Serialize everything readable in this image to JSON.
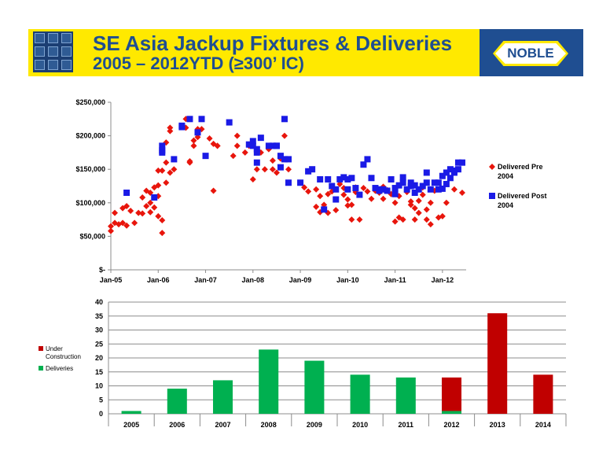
{
  "header": {
    "title_line1": "SE Asia Jackup Fixtures & Deliveries",
    "title_line2": "2005 – 2012YTD (≥300’ IC)",
    "brand": "NOBLE",
    "colors": {
      "banner": "#ffe900",
      "title": "#1f4e91",
      "brand_box": "#1f4e91"
    }
  },
  "chart_data": [
    {
      "type": "scatter",
      "ylim": [
        0,
        250000
      ],
      "y_ticks": [
        0,
        50000,
        100000,
        150000,
        200000,
        250000
      ],
      "y_tick_labels": [
        "$-",
        "$50,000",
        "$100,000",
        "$150,000",
        "$200,000",
        "$250,000"
      ],
      "x_ticks": [
        "2005-01",
        "2006-01",
        "2007-01",
        "2008-01",
        "2009-01",
        "2010-01",
        "2011-01",
        "2012-01"
      ],
      "x_tick_labels": [
        "Jan-05",
        "Jan-06",
        "Jan-07",
        "Jan-08",
        "Jan-09",
        "Jan-10",
        "Jan-11",
        "Jan-12"
      ],
      "xlim": [
        "2005-01",
        "2012-07"
      ],
      "legend_position": "right",
      "series": [
        {
          "name": "Delivered Pre 2004",
          "color": "#e8150c",
          "marker": "diamond",
          "points": [
            [
              "2005-01",
              58000
            ],
            [
              "2005-01",
              65000
            ],
            [
              "2005-02",
              70000
            ],
            [
              "2005-02",
              85000
            ],
            [
              "2005-03",
              68000
            ],
            [
              "2005-04",
              92000
            ],
            [
              "2005-04",
              70000
            ],
            [
              "2005-05",
              66000
            ],
            [
              "2005-05",
              95000
            ],
            [
              "2005-06",
              88000
            ],
            [
              "2005-07",
              70000
            ],
            [
              "2005-08",
              85000
            ],
            [
              "2005-09",
              84000
            ],
            [
              "2005-09",
              108000
            ],
            [
              "2005-10",
              95000
            ],
            [
              "2005-10",
              118000
            ],
            [
              "2005-11",
              115000
            ],
            [
              "2005-11",
              86000
            ],
            [
              "2005-11",
              100000
            ],
            [
              "2005-12",
              93000
            ],
            [
              "2005-12",
              123000
            ],
            [
              "2006-01",
              80000
            ],
            [
              "2006-01",
              110000
            ],
            [
              "2006-01",
              126000
            ],
            [
              "2006-01",
              148000
            ],
            [
              "2006-02",
              74000
            ],
            [
              "2006-02",
              148000
            ],
            [
              "2006-02",
              55000
            ],
            [
              "2006-03",
              160000
            ],
            [
              "2006-03",
              190000
            ],
            [
              "2006-03",
              130000
            ],
            [
              "2006-04",
              207000
            ],
            [
              "2006-04",
              212000
            ],
            [
              "2006-04",
              145000
            ],
            [
              "2006-05",
              150000
            ],
            [
              "2006-08",
              225000
            ],
            [
              "2006-08",
              212000
            ],
            [
              "2006-09",
              160000
            ],
            [
              "2006-09",
              162000
            ],
            [
              "2006-10",
              193000
            ],
            [
              "2006-10",
              185000
            ],
            [
              "2006-11",
              198000
            ],
            [
              "2006-11",
              210000
            ],
            [
              "2006-12",
              210000
            ],
            [
              "2007-02",
              196000
            ],
            [
              "2007-03",
              188000
            ],
            [
              "2007-03",
              118000
            ],
            [
              "2007-04",
              185000
            ],
            [
              "2007-04",
              185000
            ],
            [
              "2007-08",
              170000
            ],
            [
              "2007-09",
              185000
            ],
            [
              "2007-09",
              200000
            ],
            [
              "2007-11",
              175000
            ],
            [
              "2007-12",
              185000
            ],
            [
              "2008-01",
              135000
            ],
            [
              "2008-02",
              150000
            ],
            [
              "2008-03",
              175000
            ],
            [
              "2008-04",
              150000
            ],
            [
              "2008-05",
              180000
            ],
            [
              "2008-06",
              163000
            ],
            [
              "2008-06",
              150000
            ],
            [
              "2008-07",
              145000
            ],
            [
              "2008-08",
              166000
            ],
            [
              "2008-09",
              200000
            ],
            [
              "2008-10",
              150000
            ],
            [
              "2009-02",
              123000
            ],
            [
              "2009-03",
              117000
            ],
            [
              "2009-05",
              120000
            ],
            [
              "2009-05",
              94000
            ],
            [
              "2009-06",
              110000
            ],
            [
              "2009-06",
              86000
            ],
            [
              "2009-07",
              97000
            ],
            [
              "2009-08",
              85000
            ],
            [
              "2009-08",
              113000
            ],
            [
              "2009-09",
              117000
            ],
            [
              "2009-10",
              89000
            ],
            [
              "2009-11",
              128000
            ],
            [
              "2009-12",
              112000
            ],
            [
              "2009-12",
              122000
            ],
            [
              "2010-01",
              105000
            ],
            [
              "2010-01",
              96000
            ],
            [
              "2010-02",
              75000
            ],
            [
              "2010-02",
              97000
            ],
            [
              "2010-03",
              116000
            ],
            [
              "2010-03",
              123000
            ],
            [
              "2010-04",
              75000
            ],
            [
              "2010-05",
              122000
            ],
            [
              "2010-06",
              117000
            ],
            [
              "2010-07",
              106000
            ],
            [
              "2010-08",
              118000
            ],
            [
              "2010-09",
              115000
            ],
            [
              "2010-10",
              124000
            ],
            [
              "2010-10",
              106000
            ],
            [
              "2010-11",
              119000
            ],
            [
              "2010-12",
              113000
            ],
            [
              "2011-01",
              72000
            ],
            [
              "2011-01",
              100000
            ],
            [
              "2011-02",
              78000
            ],
            [
              "2011-02",
              110000
            ],
            [
              "2011-03",
              75000
            ],
            [
              "2011-04",
              116000
            ],
            [
              "2011-05",
              97000
            ],
            [
              "2011-05",
              102000
            ],
            [
              "2011-06",
              92000
            ],
            [
              "2011-06",
              75000
            ],
            [
              "2011-07",
              85000
            ],
            [
              "2011-07",
              103000
            ],
            [
              "2011-08",
              112000
            ],
            [
              "2011-08",
              123000
            ],
            [
              "2011-09",
              90000
            ],
            [
              "2011-09",
              75000
            ],
            [
              "2011-10",
              100000
            ],
            [
              "2011-10",
              68000
            ],
            [
              "2011-11",
              118000
            ],
            [
              "2011-12",
              78000
            ],
            [
              "2012-01",
              80000
            ],
            [
              "2012-02",
              100000
            ],
            [
              "2012-04",
              120000
            ],
            [
              "2012-06",
              115000
            ]
          ]
        },
        {
          "name": "Delivered Post 2004",
          "color": "#1a1ae6",
          "marker": "square",
          "points": [
            [
              "2005-05",
              115000
            ],
            [
              "2005-12",
              108000
            ],
            [
              "2006-02",
              178000
            ],
            [
              "2006-02",
              175000
            ],
            [
              "2006-02",
              185000
            ],
            [
              "2006-05",
              165000
            ],
            [
              "2006-07",
              213000
            ],
            [
              "2006-07",
              215000
            ],
            [
              "2006-09",
              225000
            ],
            [
              "2006-11",
              205000
            ],
            [
              "2006-12",
              225000
            ],
            [
              "2007-01",
              170000
            ],
            [
              "2007-07",
              220000
            ],
            [
              "2007-12",
              187000
            ],
            [
              "2008-01",
              185000
            ],
            [
              "2008-01",
              192000
            ],
            [
              "2008-02",
              175000
            ],
            [
              "2008-02",
              160000
            ],
            [
              "2008-02",
              180000
            ],
            [
              "2008-03",
              197000
            ],
            [
              "2008-05",
              185000
            ],
            [
              "2008-06",
              185000
            ],
            [
              "2008-07",
              185000
            ],
            [
              "2008-07",
              185000
            ],
            [
              "2008-08",
              170000
            ],
            [
              "2008-08",
              153000
            ],
            [
              "2008-09",
              225000
            ],
            [
              "2008-09",
              165000
            ],
            [
              "2008-10",
              130000
            ],
            [
              "2008-10",
              165000
            ],
            [
              "2009-01",
              130000
            ],
            [
              "2009-03",
              147000
            ],
            [
              "2009-04",
              150000
            ],
            [
              "2009-06",
              135000
            ],
            [
              "2009-07",
              90000
            ],
            [
              "2009-08",
              135000
            ],
            [
              "2009-09",
              125000
            ],
            [
              "2009-10",
              120000
            ],
            [
              "2009-10",
              105000
            ],
            [
              "2009-11",
              135000
            ],
            [
              "2009-12",
              138000
            ],
            [
              "2010-01",
              120000
            ],
            [
              "2010-01",
              135000
            ],
            [
              "2010-02",
              137000
            ],
            [
              "2010-03",
              122000
            ],
            [
              "2010-04",
              112000
            ],
            [
              "2010-05",
              157000
            ],
            [
              "2010-06",
              165000
            ],
            [
              "2010-07",
              137000
            ],
            [
              "2010-08",
              122000
            ],
            [
              "2010-09",
              118000
            ],
            [
              "2010-09",
              120000
            ],
            [
              "2010-10",
              120000
            ],
            [
              "2010-11",
              118000
            ],
            [
              "2010-12",
              135000
            ],
            [
              "2011-01",
              113000
            ],
            [
              "2011-01",
              122000
            ],
            [
              "2011-02",
              126000
            ],
            [
              "2011-03",
              130000
            ],
            [
              "2011-03",
              138000
            ],
            [
              "2011-04",
              120000
            ],
            [
              "2011-05",
              130000
            ],
            [
              "2011-05",
              125000
            ],
            [
              "2011-06",
              126000
            ],
            [
              "2011-06",
              115000
            ],
            [
              "2011-07",
              120000
            ],
            [
              "2011-08",
              125000
            ],
            [
              "2011-09",
              130000
            ],
            [
              "2011-09",
              145000
            ],
            [
              "2011-10",
              120000
            ],
            [
              "2011-11",
              130000
            ],
            [
              "2011-12",
              130000
            ],
            [
              "2011-12",
              120000
            ],
            [
              "2012-01",
              140000
            ],
            [
              "2012-01",
              121000
            ],
            [
              "2012-02",
              145000
            ],
            [
              "2012-02",
              128000
            ],
            [
              "2012-03",
              150000
            ],
            [
              "2012-03",
              137000
            ],
            [
              "2012-04",
              148000
            ],
            [
              "2012-04",
              145000
            ],
            [
              "2012-05",
              150000
            ],
            [
              "2012-05",
              160000
            ],
            [
              "2012-06",
              160000
            ]
          ]
        }
      ]
    },
    {
      "type": "bar",
      "stacked": true,
      "categories": [
        "2005",
        "2006",
        "2007",
        "2008",
        "2009",
        "2010",
        "2011",
        "2012",
        "2013",
        "2014"
      ],
      "ylim": [
        0,
        40
      ],
      "y_ticks": [
        0,
        5,
        10,
        15,
        20,
        25,
        30,
        35,
        40
      ],
      "grid": true,
      "legend_position": "left",
      "series": [
        {
          "name": "Deliveries",
          "color": "#00b050",
          "values": [
            1,
            9,
            12,
            23,
            19,
            14,
            13,
            1,
            0,
            0
          ]
        },
        {
          "name": "Under Construction",
          "color": "#c00000",
          "values": [
            0,
            0,
            0,
            0,
            0,
            0,
            0,
            12,
            36,
            14
          ]
        }
      ],
      "legend_order": [
        "Under Construction",
        "Deliveries"
      ]
    }
  ]
}
